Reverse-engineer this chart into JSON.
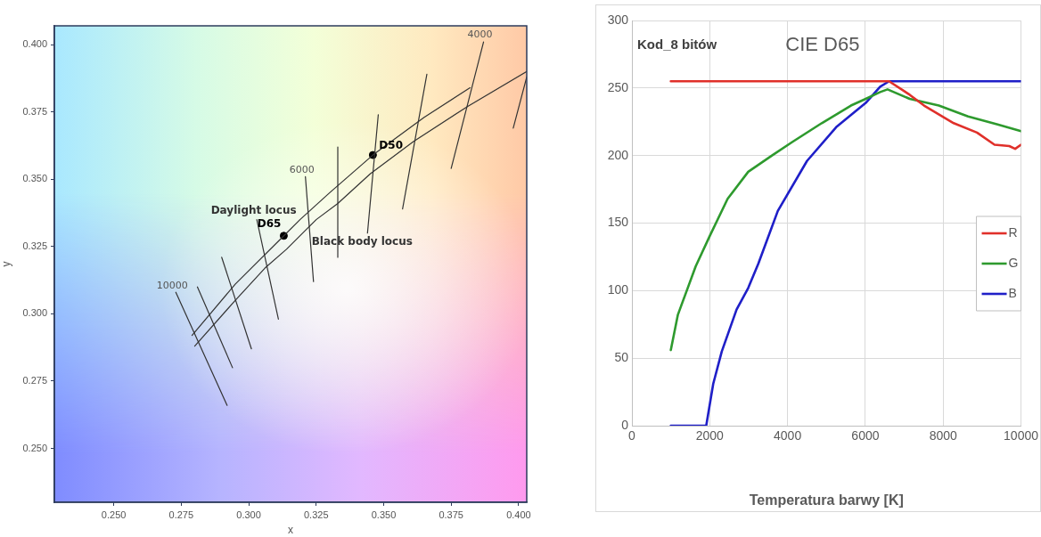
{
  "chart_data": [
    {
      "type": "line",
      "xlabel": "x",
      "ylabel": "y",
      "xlim": [
        0.228,
        0.403
      ],
      "ylim": [
        0.23,
        0.407
      ],
      "xticks": [
        {
          "value": 0.25,
          "label": "0.250"
        },
        {
          "value": 0.275,
          "label": "0.275"
        },
        {
          "value": 0.3,
          "label": "0.300"
        },
        {
          "value": 0.325,
          "label": "0.325"
        },
        {
          "value": 0.35,
          "label": "0.350"
        },
        {
          "value": 0.375,
          "label": "0.375"
        },
        {
          "value": 0.4,
          "label": "0.400"
        }
      ],
      "yticks": [
        {
          "value": 0.25,
          "label": "0.250"
        },
        {
          "value": 0.275,
          "label": "0.275"
        },
        {
          "value": 0.3,
          "label": "0.300"
        },
        {
          "value": 0.325,
          "label": "0.325"
        },
        {
          "value": 0.35,
          "label": "0.350"
        },
        {
          "value": 0.375,
          "label": "0.375"
        },
        {
          "value": 0.4,
          "label": "0.400"
        }
      ],
      "grid": false,
      "legend": false,
      "series": [
        {
          "type": "line",
          "name": "Daylight locus",
          "color": "#333333",
          "x": [
            0.279,
            0.295,
            0.313,
            0.319,
            0.33,
            0.346,
            0.365,
            0.382
          ],
          "values": [
            0.292,
            0.311,
            0.329,
            0.335,
            0.345,
            0.359,
            0.373,
            0.384
          ]
        },
        {
          "type": "line",
          "name": "Black body locus",
          "color": "#333333",
          "x": [
            0.28,
            0.295,
            0.306,
            0.314,
            0.322,
            0.325,
            0.333,
            0.345,
            0.361,
            0.381,
            0.403
          ],
          "values": [
            0.288,
            0.305,
            0.317,
            0.324,
            0.332,
            0.335,
            0.341,
            0.352,
            0.364,
            0.377,
            0.39
          ]
        },
        {
          "type": "line",
          "color": "#333333",
          "x": [
            0.273,
            0.292
          ],
          "values": [
            0.308,
            0.266
          ]
        },
        {
          "type": "line",
          "color": "#333333",
          "x": [
            0.281,
            0.294
          ],
          "values": [
            0.31,
            0.28
          ]
        },
        {
          "type": "line",
          "color": "#333333",
          "x": [
            0.29,
            0.301
          ],
          "values": [
            0.321,
            0.287
          ]
        },
        {
          "type": "line",
          "color": "#333333",
          "x": [
            0.303,
            0.311
          ],
          "values": [
            0.335,
            0.298
          ]
        },
        {
          "type": "line",
          "color": "#333333",
          "x": [
            0.321,
            0.324
          ],
          "values": [
            0.351,
            0.312
          ]
        },
        {
          "type": "line",
          "color": "#333333",
          "x": [
            0.333,
            0.333
          ],
          "values": [
            0.362,
            0.321
          ]
        },
        {
          "type": "line",
          "color": "#333333",
          "x": [
            0.348,
            0.344
          ],
          "values": [
            0.374,
            0.33
          ]
        },
        {
          "type": "line",
          "color": "#333333",
          "x": [
            0.366,
            0.357
          ],
          "values": [
            0.389,
            0.339
          ]
        },
        {
          "type": "line",
          "color": "#333333",
          "x": [
            0.387,
            0.375
          ],
          "values": [
            0.401,
            0.354
          ]
        },
        {
          "type": "line",
          "color": "#333333",
          "x": [
            0.398,
            0.403
          ],
          "values": [
            0.369,
            0.388
          ]
        },
        {
          "type": "scatter",
          "name": "D65",
          "color": "#000000",
          "marker": "circle",
          "x": [
            0.313
          ],
          "values": [
            0.329
          ]
        },
        {
          "type": "scatter",
          "name": "D50",
          "color": "#000000",
          "marker": "circle",
          "x": [
            0.346
          ],
          "values": [
            0.359
          ]
        }
      ],
      "annotations": [
        {
          "text": "10000",
          "x": 0.273,
          "y": 0.308
        },
        {
          "text": "6000",
          "x": 0.321,
          "y": 0.351
        },
        {
          "text": "4000",
          "x": 0.387,
          "y": 0.401
        }
      ]
    },
    {
      "type": "line",
      "title": "CIE D65",
      "xlabel": "Temperatura barwy [K]",
      "ylabel": "Kod_8 bitów",
      "xlim": [
        0,
        10000
      ],
      "ylim": [
        0,
        300
      ],
      "xticks": [
        0,
        2000,
        4000,
        6000,
        8000,
        10000
      ],
      "yticks": [
        0,
        50,
        100,
        150,
        200,
        250,
        300
      ],
      "grid": true,
      "legend": "right",
      "marker": "none",
      "series": [
        {
          "name": "R",
          "color": "#e0302a",
          "x": [
            1000,
            6500,
            6610,
            7140,
            7510,
            8270,
            8870,
            9320,
            9700,
            9850,
            10000
          ],
          "values": [
            255,
            255,
            255,
            245,
            237,
            224,
            217,
            208,
            207,
            205,
            208
          ]
        },
        {
          "name": "G",
          "color": "#2e9a2e",
          "x": [
            1000,
            1180,
            1410,
            1640,
            2010,
            2460,
            2990,
            3600,
            4120,
            4880,
            5630,
            6010,
            6380,
            6570,
            7140,
            7890,
            8640,
            9400,
            10000
          ],
          "values": [
            56,
            82,
            100,
            118,
            141,
            168,
            188,
            200,
            210,
            224,
            237,
            242,
            247,
            249,
            242,
            237,
            229,
            223,
            218
          ]
        },
        {
          "name": "B",
          "color": "#1f1fc8",
          "x": [
            1000,
            1910,
            2090,
            2310,
            2690,
            2990,
            3250,
            3750,
            4500,
            5250,
            6010,
            6380,
            6610,
            10000
          ],
          "values": [
            0,
            0,
            31,
            55,
            86,
            102,
            120,
            159,
            196,
            221,
            239,
            251,
            255,
            255
          ]
        }
      ]
    }
  ]
}
